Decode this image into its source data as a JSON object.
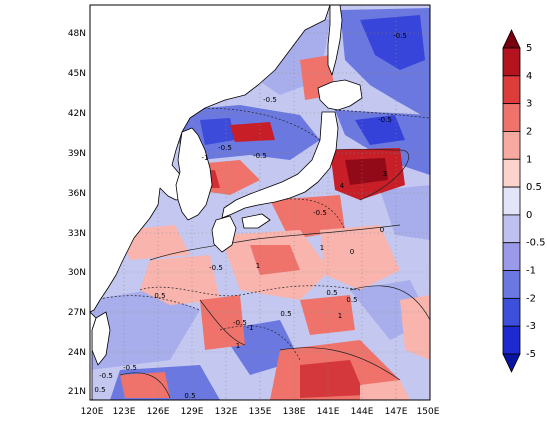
{
  "map": {
    "lat_labels": [
      "48N",
      "45N",
      "42N",
      "39N",
      "36N",
      "33N",
      "30N",
      "27N",
      "24N",
      "21N"
    ],
    "lon_labels": [
      "120E",
      "123E",
      "126E",
      "129E",
      "132E",
      "135E",
      "138E",
      "141E",
      "144E",
      "147E",
      "150E"
    ],
    "contour_labels": [
      "-0.5",
      "-0.5",
      "-0.5",
      "-0.5",
      "-1",
      "-0.5",
      "-0.5",
      "0",
      "0.5",
      "1",
      "1",
      "1",
      "0.5",
      "0.5",
      "0",
      "-0.5",
      "-0.5",
      "-1",
      "0.5",
      "1",
      "4",
      "3",
      "-0.5",
      "0.5",
      "-0.5",
      "0.5"
    ]
  },
  "colorbar": {
    "ticks": [
      "5",
      "4",
      "3",
      "2",
      "1",
      "0.5",
      "0",
      "-0.5",
      "-1",
      "-2",
      "-3",
      "-5"
    ],
    "colors": [
      "#7a0010",
      "#b4141e",
      "#dc3c3c",
      "#f0736b",
      "#f8a9a0",
      "#fcd2cc",
      "#e4e4f8",
      "#c0c0f0",
      "#9a9ae8",
      "#6b78e0",
      "#3c50dc",
      "#1e2ad0",
      "#0a14a0"
    ]
  },
  "palette": {
    "land": "#ffffff",
    "sea_base": "#c4c8f0",
    "warm_light": "#f8b4ad",
    "warm_mid": "#f0736b",
    "warm_dark": "#c81e28",
    "cool_light": "#a8aeec",
    "cool_mid": "#6b78e0",
    "cool_dark": "#2a38d8"
  }
}
